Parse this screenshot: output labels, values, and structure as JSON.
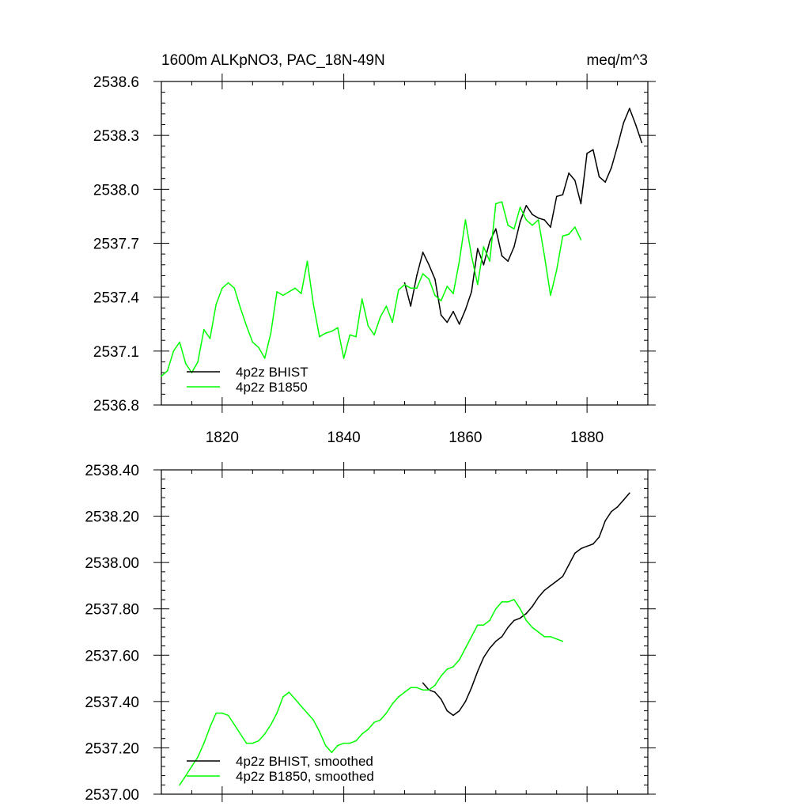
{
  "chart_data": [
    {
      "type": "line",
      "title": "1600m ALKpNO3, PAC_18N-49N",
      "units": "meq/m^3",
      "xlim": [
        1810,
        1890
      ],
      "ylim": [
        2536.8,
        2538.6
      ],
      "x_ticks": [
        1820,
        1840,
        1860,
        1880
      ],
      "x_tick_labels": [
        "1820",
        "1840",
        "1860",
        "1880"
      ],
      "y_ticks": [
        2536.8,
        2537.1,
        2537.4,
        2537.7,
        2538.0,
        2538.3,
        2538.6
      ],
      "y_tick_labels": [
        "2536.8",
        "2537.1",
        "2537.4",
        "2537.7",
        "2538.0",
        "2538.3",
        "2538.6"
      ],
      "legend_position": "bottom-left",
      "series": [
        {
          "name": "4p2z BHIST",
          "color": "#000000",
          "x": [
            1850,
            1851,
            1852,
            1853,
            1854,
            1855,
            1856,
            1857,
            1858,
            1859,
            1860,
            1861,
            1862,
            1863,
            1864,
            1865,
            1866,
            1867,
            1868,
            1869,
            1870,
            1871,
            1872,
            1873,
            1874,
            1875,
            1876,
            1877,
            1878,
            1879,
            1880,
            1881,
            1882,
            1883,
            1884,
            1885,
            1886,
            1887,
            1888,
            1889
          ],
          "y": [
            2537.48,
            2537.35,
            2537.52,
            2537.65,
            2537.58,
            2537.5,
            2537.3,
            2537.26,
            2537.32,
            2537.25,
            2537.33,
            2537.43,
            2537.67,
            2537.58,
            2537.71,
            2537.78,
            2537.63,
            2537.6,
            2537.68,
            2537.82,
            2537.91,
            2537.86,
            2537.84,
            2537.83,
            2537.79,
            2537.96,
            2537.97,
            2538.09,
            2538.05,
            2537.92,
            2538.2,
            2538.22,
            2538.07,
            2538.04,
            2538.12,
            2538.24,
            2538.37,
            2538.45,
            2538.36,
            2538.26
          ]
        },
        {
          "name": "4p2z B1850",
          "color": "#00ff00",
          "x": [
            1810,
            1811,
            1812,
            1813,
            1814,
            1815,
            1816,
            1817,
            1818,
            1819,
            1820,
            1821,
            1822,
            1823,
            1824,
            1825,
            1826,
            1827,
            1828,
            1829,
            1830,
            1831,
            1832,
            1833,
            1834,
            1835,
            1836,
            1837,
            1838,
            1839,
            1840,
            1841,
            1842,
            1843,
            1844,
            1845,
            1846,
            1847,
            1848,
            1849,
            1850,
            1851,
            1852,
            1853,
            1854,
            1855,
            1856,
            1857,
            1858,
            1859,
            1860,
            1861,
            1862,
            1863,
            1864,
            1865,
            1866,
            1867,
            1868,
            1869,
            1870,
            1871,
            1872,
            1873,
            1874,
            1875,
            1876,
            1877,
            1878,
            1879
          ],
          "y": [
            2536.96,
            2536.99,
            2537.1,
            2537.15,
            2537.03,
            2536.98,
            2537.04,
            2537.22,
            2537.17,
            2537.36,
            2537.45,
            2537.48,
            2537.45,
            2537.34,
            2537.24,
            2537.15,
            2537.12,
            2537.06,
            2537.2,
            2537.43,
            2537.41,
            2537.43,
            2537.45,
            2537.42,
            2537.6,
            2537.36,
            2537.18,
            2537.2,
            2537.21,
            2537.23,
            2537.06,
            2537.19,
            2537.18,
            2537.39,
            2537.24,
            2537.19,
            2537.29,
            2537.35,
            2537.26,
            2537.44,
            2537.47,
            2537.45,
            2537.45,
            2537.53,
            2537.5,
            2537.41,
            2537.38,
            2537.46,
            2537.42,
            2537.6,
            2537.83,
            2537.63,
            2537.47,
            2537.68,
            2537.6,
            2537.92,
            2537.93,
            2537.8,
            2537.78,
            2537.9,
            2537.83,
            2537.8,
            2537.83,
            2537.63,
            2537.41,
            2537.55,
            2537.74,
            2537.75,
            2537.79,
            2537.72
          ]
        }
      ]
    },
    {
      "type": "line",
      "xlim": [
        1810,
        1890
      ],
      "ylim": [
        2537.0,
        2538.4
      ],
      "x_ticks": [
        1820,
        1840,
        1860,
        1880
      ],
      "y_ticks": [
        2537.0,
        2537.2,
        2537.4,
        2537.6,
        2537.8,
        2538.0,
        2538.2,
        2538.4
      ],
      "y_tick_labels": [
        "2537.00",
        "2537.20",
        "2537.40",
        "2537.60",
        "2537.80",
        "2538.00",
        "2538.20",
        "2538.40"
      ],
      "legend_position": "bottom-left",
      "series": [
        {
          "name": "4p2z BHIST, smoothed",
          "color": "#000000",
          "x": [
            1853,
            1854,
            1855,
            1856,
            1857,
            1858,
            1859,
            1860,
            1861,
            1862,
            1863,
            1864,
            1865,
            1866,
            1867,
            1868,
            1869,
            1870,
            1871,
            1872,
            1873,
            1874,
            1875,
            1876,
            1877,
            1878,
            1879,
            1880,
            1881,
            1882,
            1883,
            1884,
            1885,
            1886,
            1887
          ],
          "y": [
            2537.48,
            2537.45,
            2537.44,
            2537.41,
            2537.36,
            2537.34,
            2537.36,
            2537.4,
            2537.46,
            2537.53,
            2537.59,
            2537.63,
            2537.66,
            2537.68,
            2537.72,
            2537.75,
            2537.76,
            2537.78,
            2537.81,
            2537.85,
            2537.88,
            2537.9,
            2537.92,
            2537.94,
            2537.99,
            2538.04,
            2538.06,
            2538.07,
            2538.08,
            2538.11,
            2538.18,
            2538.22,
            2538.24,
            2538.27,
            2538.3
          ]
        },
        {
          "name": "4p2z B1850, smoothed",
          "color": "#00ff00",
          "x": [
            1813,
            1814,
            1815,
            1816,
            1817,
            1818,
            1819,
            1820,
            1821,
            1822,
            1823,
            1824,
            1825,
            1826,
            1827,
            1828,
            1829,
            1830,
            1831,
            1832,
            1833,
            1834,
            1835,
            1836,
            1837,
            1838,
            1839,
            1840,
            1841,
            1842,
            1843,
            1844,
            1845,
            1846,
            1847,
            1848,
            1849,
            1850,
            1851,
            1852,
            1853,
            1854,
            1855,
            1856,
            1857,
            1858,
            1859,
            1860,
            1861,
            1862,
            1863,
            1864,
            1865,
            1866,
            1867,
            1868,
            1869,
            1870,
            1871,
            1872,
            1873,
            1874,
            1875,
            1876
          ],
          "y": [
            2537.04,
            2537.08,
            2537.12,
            2537.16,
            2537.22,
            2537.29,
            2537.35,
            2537.35,
            2537.34,
            2537.3,
            2537.26,
            2537.22,
            2537.22,
            2537.23,
            2537.26,
            2537.3,
            2537.35,
            2537.42,
            2537.44,
            2537.41,
            2537.38,
            2537.35,
            2537.32,
            2537.27,
            2537.21,
            2537.18,
            2537.21,
            2537.22,
            2537.22,
            2537.23,
            2537.26,
            2537.28,
            2537.31,
            2537.32,
            2537.35,
            2537.39,
            2537.42,
            2537.44,
            2537.46,
            2537.46,
            2537.45,
            2537.45,
            2537.47,
            2537.51,
            2537.54,
            2537.55,
            2537.58,
            2537.63,
            2537.68,
            2537.73,
            2537.73,
            2537.75,
            2537.8,
            2537.83,
            2537.83,
            2537.84,
            2537.8,
            2537.75,
            2537.72,
            2537.7,
            2537.68,
            2537.68,
            2537.67,
            2537.66
          ]
        }
      ]
    }
  ]
}
